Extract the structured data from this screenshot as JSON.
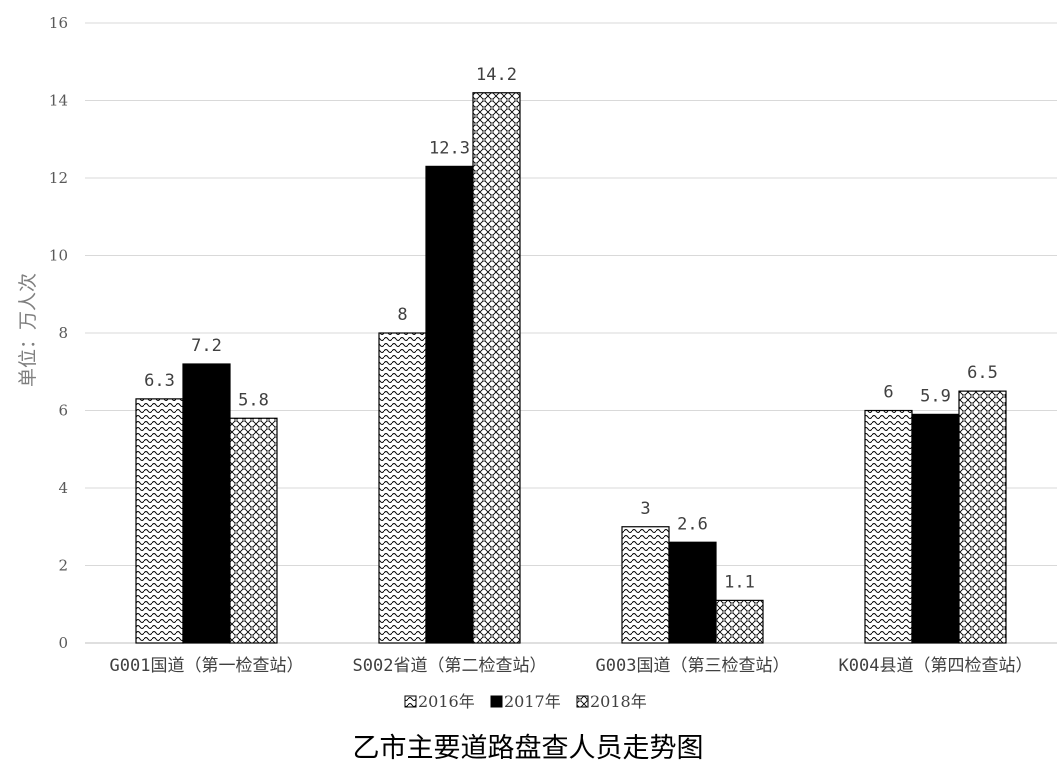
{
  "chart_data": {
    "type": "bar",
    "title": "乙市主要道路盘查人员走势图",
    "ylabel": "单位：万人次",
    "xlabel": "",
    "ylim": [
      0,
      16
    ],
    "yticks": [
      0,
      2,
      4,
      6,
      8,
      10,
      12,
      14,
      16
    ],
    "grid": true,
    "legend_position": "bottom",
    "categories": [
      "G001国道（第一检查站）",
      "S002省道（第二检查站）",
      "G003国道（第三检查站）",
      "K004县道（第四检查站）"
    ],
    "series": [
      {
        "name": "2016年",
        "values": [
          6.3,
          8,
          3,
          6
        ],
        "labels": [
          "6.3",
          "8",
          "3",
          "6"
        ],
        "pattern": "wave",
        "color": "#000000"
      },
      {
        "name": "2017年",
        "values": [
          7.2,
          12.3,
          2.6,
          5.9
        ],
        "labels": [
          "7.2",
          "12.3",
          "2.6",
          "5.9"
        ],
        "pattern": "solid",
        "color": "#000000"
      },
      {
        "name": "2018年",
        "values": [
          5.8,
          14.2,
          1.1,
          6.5
        ],
        "labels": [
          "5.8",
          "14.2",
          "1.1",
          "6.5"
        ],
        "pattern": "weave",
        "color": "#000000"
      }
    ],
    "colors": {
      "grid": "#d9d9d9",
      "axis": "#bfbfbf",
      "bar_stroke": "#000000"
    }
  }
}
